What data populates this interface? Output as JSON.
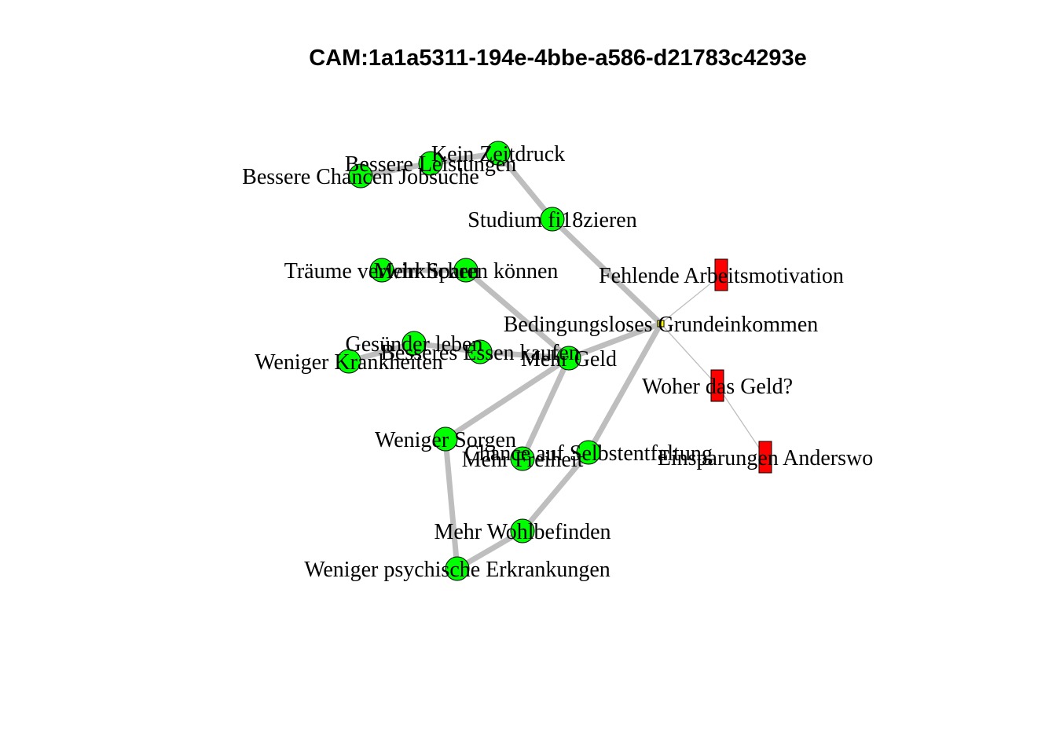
{
  "title": "CAM:1a1a5311-194e-4bbe-a586-d21783c4293e",
  "colors": {
    "positive": "#00ff00",
    "negative": "#ff0000",
    "neutral": "#ffff00",
    "edge": "#bebebe"
  },
  "nodes": [
    {
      "id": "n1",
      "label": "Bedingungsloses Grundeinkommen",
      "valence": "neutral",
      "shape": "square"
    },
    {
      "id": "n2",
      "label": "Fehlende Arbeitsmotivation",
      "valence": "negative",
      "shape": "rect"
    },
    {
      "id": "n3",
      "label": "Woher das Geld?",
      "valence": "negative",
      "shape": "rect"
    },
    {
      "id": "n4",
      "label": "Einsparungen Anderswo",
      "valence": "negative",
      "shape": "rect"
    },
    {
      "id": "n5",
      "label": "Mehr Geld",
      "valence": "positive",
      "shape": "circle"
    },
    {
      "id": "n6",
      "label": "Studium fi18zieren",
      "valence": "positive",
      "shape": "circle"
    },
    {
      "id": "n7",
      "label": "Kein Zeitdruck",
      "valence": "positive",
      "shape": "circle"
    },
    {
      "id": "n8",
      "label": "Bessere Leistungen",
      "valence": "positive",
      "shape": "circle"
    },
    {
      "id": "n9",
      "label": "Bessere Chancen Jobsuche",
      "valence": "positive",
      "shape": "circle"
    },
    {
      "id": "n10",
      "label": "Mehr Sparen können",
      "valence": "positive",
      "shape": "circle"
    },
    {
      "id": "n11",
      "label": "Träume verwirklichen",
      "valence": "positive",
      "shape": "circle"
    },
    {
      "id": "n12",
      "label": "Besseres Essen kaufen",
      "valence": "positive",
      "shape": "circle"
    },
    {
      "id": "n13",
      "label": "Gesünder leben",
      "valence": "positive",
      "shape": "circle"
    },
    {
      "id": "n14",
      "label": "Weniger Krankheiten",
      "valence": "positive",
      "shape": "circle"
    },
    {
      "id": "n15",
      "label": "Weniger Sorgen",
      "valence": "positive",
      "shape": "circle"
    },
    {
      "id": "n16",
      "label": "Mehr Freiheit",
      "valence": "positive",
      "shape": "circle"
    },
    {
      "id": "n17",
      "label": "Chance auf Selbstentfaltung",
      "valence": "positive",
      "shape": "circle"
    },
    {
      "id": "n18",
      "label": "Mehr Wohlbefinden",
      "valence": "positive",
      "shape": "circle"
    },
    {
      "id": "n19",
      "label": "Weniger psychische Erkrankungen",
      "valence": "positive",
      "shape": "circle"
    }
  ],
  "edges": [
    {
      "from": "n1",
      "to": "n2",
      "weight": "thin"
    },
    {
      "from": "n1",
      "to": "n3",
      "weight": "thin"
    },
    {
      "from": "n3",
      "to": "n4",
      "weight": "thin"
    },
    {
      "from": "n1",
      "to": "n5",
      "weight": "thick"
    },
    {
      "from": "n1",
      "to": "n6",
      "weight": "thick"
    },
    {
      "from": "n6",
      "to": "n7",
      "weight": "thick"
    },
    {
      "from": "n7",
      "to": "n8",
      "weight": "thick"
    },
    {
      "from": "n8",
      "to": "n9",
      "weight": "thick"
    },
    {
      "from": "n5",
      "to": "n10",
      "weight": "thick"
    },
    {
      "from": "n10",
      "to": "n11",
      "weight": "thick"
    },
    {
      "from": "n5",
      "to": "n12",
      "weight": "thick"
    },
    {
      "from": "n12",
      "to": "n13",
      "weight": "thick"
    },
    {
      "from": "n13",
      "to": "n14",
      "weight": "thick"
    },
    {
      "from": "n5",
      "to": "n15",
      "weight": "thick"
    },
    {
      "from": "n5",
      "to": "n16",
      "weight": "thick"
    },
    {
      "from": "n1",
      "to": "n17",
      "weight": "thick"
    },
    {
      "from": "n17",
      "to": "n18",
      "weight": "thick"
    },
    {
      "from": "n15",
      "to": "n19",
      "weight": "thick"
    },
    {
      "from": "n18",
      "to": "n19",
      "weight": "thick"
    }
  ]
}
